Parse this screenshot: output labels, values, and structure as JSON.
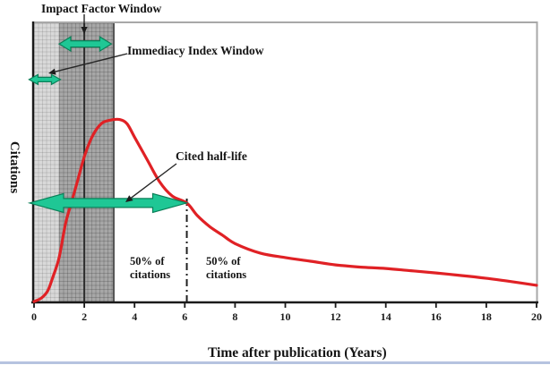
{
  "labels": {
    "impact_factor_window": "Impact Factor Window",
    "immediacy_index_window": "Immediacy Index Window",
    "cited_half_life": "Cited half-life",
    "fifty_left_line1": "50% of",
    "fifty_left_line2": "citations",
    "fifty_right_line1": "50% of",
    "fifty_right_line2": "citations"
  },
  "chart_data": {
    "type": "line",
    "title": "",
    "xlabel": "Time after publication (Years)",
    "ylabel": "Citations",
    "x_ticks": [
      0,
      2,
      4,
      6,
      8,
      10,
      12,
      14,
      16,
      18,
      20
    ],
    "xlim": [
      0,
      20
    ],
    "ylim": [
      0,
      100
    ],
    "grid": false,
    "legend": "none",
    "series": [
      {
        "name": "citation-curve",
        "color": "#e02125",
        "points": [
          [
            0,
            0.3
          ],
          [
            0.3,
            1.6
          ],
          [
            0.55,
            4.2
          ],
          [
            0.75,
            9
          ],
          [
            1.0,
            16
          ],
          [
            1.25,
            28
          ],
          [
            1.5,
            36
          ],
          [
            1.75,
            44
          ],
          [
            2.0,
            52
          ],
          [
            2.25,
            58
          ],
          [
            2.5,
            62
          ],
          [
            2.75,
            64.3
          ],
          [
            3.1,
            65.2
          ],
          [
            3.4,
            65.3
          ],
          [
            3.7,
            63.8
          ],
          [
            4.0,
            59
          ],
          [
            4.5,
            51
          ],
          [
            5.0,
            43
          ],
          [
            5.5,
            38
          ],
          [
            6.08,
            35.5
          ],
          [
            6.5,
            31
          ],
          [
            7.0,
            27
          ],
          [
            7.5,
            24
          ],
          [
            8.0,
            21
          ],
          [
            9.0,
            17.6
          ],
          [
            10.0,
            16
          ],
          [
            11.0,
            14.7
          ],
          [
            12.0,
            13.4
          ],
          [
            13.0,
            12.6
          ],
          [
            14.0,
            12.1
          ],
          [
            15.0,
            11.3
          ],
          [
            16.0,
            10.5
          ],
          [
            17.0,
            9.6
          ],
          [
            18.0,
            8.6
          ],
          [
            19.0,
            7.4
          ],
          [
            20.0,
            6.1
          ]
        ]
      }
    ],
    "regions": [
      {
        "name": "immediacy-index-window-region",
        "x_start": 0,
        "x_end": 1,
        "style": "light-grid"
      },
      {
        "name": "impact-factor-window-region",
        "x_start": 1,
        "x_end": 3.15,
        "style": "dark-grid"
      }
    ],
    "reference_lines": [
      {
        "name": "impact-factor-midline",
        "x": 2,
        "style": "solid"
      },
      {
        "name": "cited-half-life-line",
        "x": 6.08,
        "style": "dash-dot"
      }
    ],
    "span_arrows": [
      {
        "name": "impact-factor-window-arrow",
        "x_start": 1.0,
        "x_end": 3.08,
        "y_value": 92.3,
        "size": "medium"
      },
      {
        "name": "immediacy-index-window-arrow",
        "x_start": -0.2,
        "x_end": 1.05,
        "y_value": 79.6,
        "size": "small"
      },
      {
        "name": "cited-half-life-arrow",
        "x_start": -0.18,
        "x_end": 6.08,
        "y_value": 35.5,
        "size": "large"
      }
    ]
  },
  "colors": {
    "curve": "#e02125",
    "arrow_fill": "#1fc795",
    "arrow_stroke": "#0b7f58",
    "axis": "#1a1a1a",
    "frame": "#a8a8a8",
    "region_light": "#d9d9d9",
    "region_dark": "#a7a7a7",
    "bottom_rule": "#b6c3e0"
  }
}
